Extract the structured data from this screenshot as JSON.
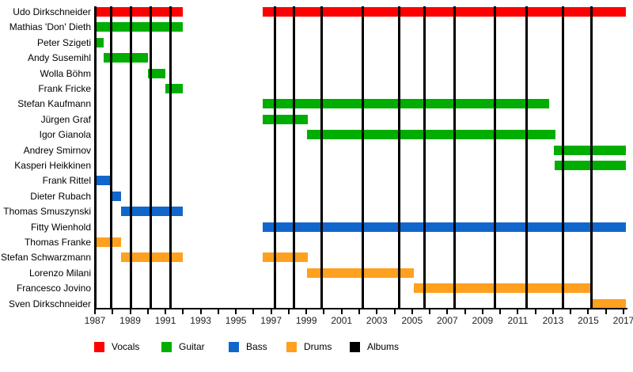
{
  "chart_data": {
    "type": "timeline",
    "description": "Band member timeline chart (Gantt-style) with colored bars per role and vertical black lines marking albums",
    "x_axis": {
      "range_start": 1987,
      "range_end": 2017,
      "minor_tick_interval_years": 1,
      "label_interval_years": 2,
      "tick_labels": [
        "1987",
        "1989",
        "1991",
        "1993",
        "1995",
        "1997",
        "1999",
        "2001",
        "2003",
        "2005",
        "2007",
        "2009",
        "2011",
        "2013",
        "2015",
        "2017"
      ]
    },
    "rows": [
      {
        "name": "Udo Dirkschneider",
        "role": "Vocals",
        "segments": [
          [
            1987.0,
            1992.0
          ],
          [
            1996.5,
            2017.15
          ]
        ]
      },
      {
        "name": "Mathias 'Don' Dieth",
        "role": "Guitar",
        "segments": [
          [
            1987.0,
            1992.0
          ]
        ]
      },
      {
        "name": "Peter Szigeti",
        "role": "Guitar",
        "segments": [
          [
            1987.0,
            1987.5
          ]
        ]
      },
      {
        "name": "Andy Susemihl",
        "role": "Guitar",
        "segments": [
          [
            1987.5,
            1990.0
          ]
        ]
      },
      {
        "name": "Wolla Böhm",
        "role": "Guitar",
        "segments": [
          [
            1990.0,
            1991.0
          ]
        ]
      },
      {
        "name": "Frank Fricke",
        "role": "Guitar",
        "segments": [
          [
            1991.0,
            1992.0
          ]
        ]
      },
      {
        "name": "Stefan Kaufmann",
        "role": "Guitar",
        "segments": [
          [
            1996.5,
            2012.8
          ]
        ]
      },
      {
        "name": "Jürgen Graf",
        "role": "Guitar",
        "segments": [
          [
            1996.5,
            1999.1
          ]
        ]
      },
      {
        "name": "Igor Gianola",
        "role": "Guitar",
        "segments": [
          [
            1999.05,
            2013.15
          ]
        ]
      },
      {
        "name": "Andrey Smirnov",
        "role": "Guitar",
        "segments": [
          [
            2013.05,
            2017.15
          ]
        ]
      },
      {
        "name": "Kasperi Heikkinen",
        "role": "Guitar",
        "segments": [
          [
            2013.1,
            2017.15
          ]
        ]
      },
      {
        "name": "Frank Rittel",
        "role": "Bass",
        "segments": [
          [
            1987.0,
            1988.0
          ]
        ]
      },
      {
        "name": "Dieter Rubach",
        "role": "Bass",
        "segments": [
          [
            1988.0,
            1988.5
          ]
        ]
      },
      {
        "name": "Thomas Smuszynski",
        "role": "Bass",
        "segments": [
          [
            1988.5,
            1992.0
          ]
        ]
      },
      {
        "name": "Fitty Wienhold",
        "role": "Bass",
        "segments": [
          [
            1996.5,
            2017.15
          ]
        ]
      },
      {
        "name": "Thomas Franke",
        "role": "Drums",
        "segments": [
          [
            1987.0,
            1988.5
          ]
        ]
      },
      {
        "name": "Stefan Schwarzmann",
        "role": "Drums",
        "segments": [
          [
            1988.5,
            1992.0
          ],
          [
            1996.5,
            1999.1
          ]
        ]
      },
      {
        "name": "Lorenzo Milani",
        "role": "Drums",
        "segments": [
          [
            1999.05,
            2005.1
          ]
        ]
      },
      {
        "name": "Francesco Jovino",
        "role": "Drums",
        "segments": [
          [
            2005.1,
            2015.1
          ]
        ]
      },
      {
        "name": "Sven Dirkschneider",
        "role": "Drums",
        "segments": [
          [
            2015.25,
            2017.15
          ]
        ]
      }
    ],
    "album_lines_years": [
      1987.92,
      1989.04,
      1990.17,
      1991.29,
      1997.22,
      1998.29,
      1999.86,
      2002.22,
      2004.27,
      2005.72,
      2007.41,
      2009.72,
      2011.49,
      2013.56,
      2015.17
    ],
    "timeline_start_line_year": 1987,
    "legend_position": "bottom",
    "legend": [
      {
        "label": "Vocals",
        "color": "#ff0000"
      },
      {
        "label": "Guitar",
        "color": "#00ad00"
      },
      {
        "label": "Bass",
        "color": "#1166cc"
      },
      {
        "label": "Drums",
        "color": "#ffa01e"
      },
      {
        "label": "Albums",
        "color": "#000000"
      }
    ]
  }
}
